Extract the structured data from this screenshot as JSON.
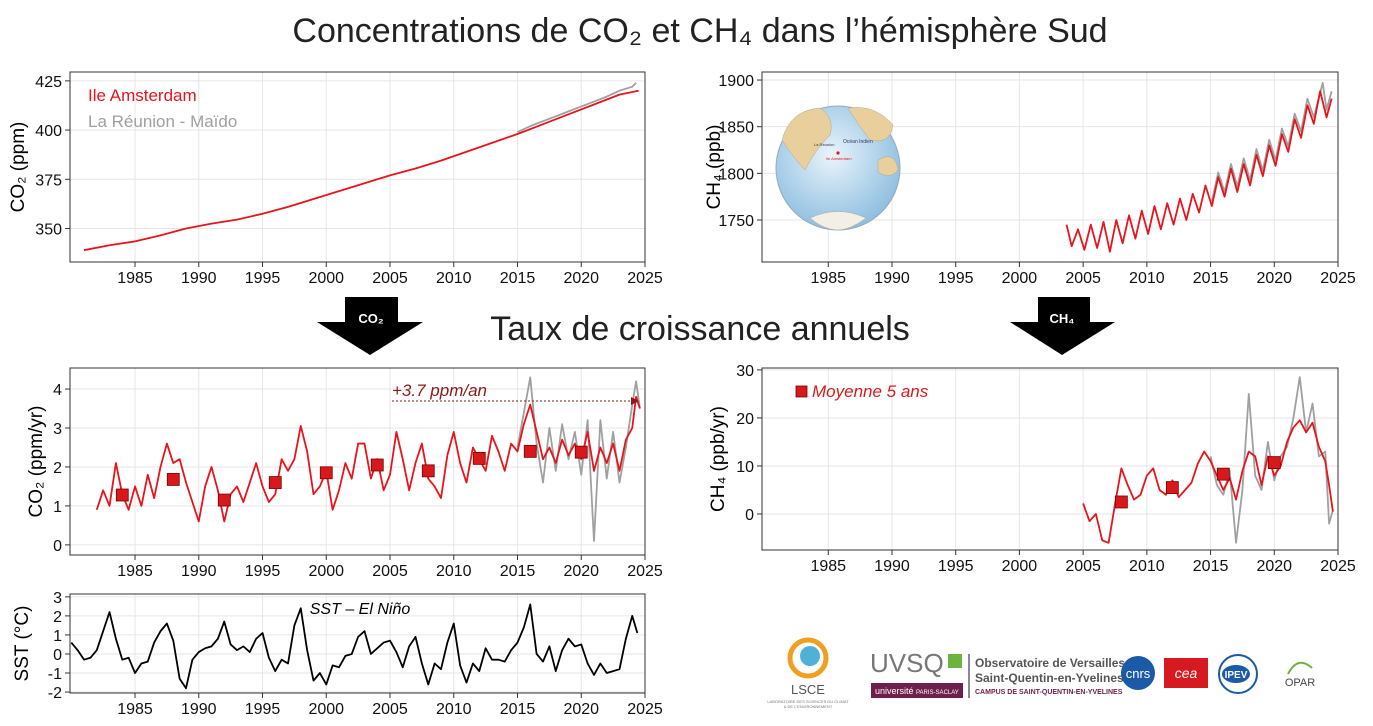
{
  "title": "Concentrations de CO₂ et CH₄ dans l’hémisphère Sud",
  "subtitle": "Taux de croissance annuels",
  "arrows": [
    "CO₂",
    "CH₄"
  ],
  "inset_map": {
    "labels": [
      "Océan Indien",
      "La Réunion",
      "Ile Amsterdam"
    ]
  },
  "logos": {
    "lsce": "LSCE",
    "lsce_full_1": "LABORATOIRE DES SCIENCES DU CLIMAT",
    "lsce_full_2": "& DE L'ENVIRONNEMENT",
    "uvsq": "UVSQ",
    "saclay_1": "université",
    "saclay_2": "PARIS-SACLAY",
    "osu_1": "Observatoire de Versailles",
    "osu_2": "Saint-Quentin-en-Yvelines",
    "osu_3": "CAMPUS DE SAINT-QUENTIN-EN-YVELINES",
    "cnrs": "cnrs",
    "cea": "cea",
    "ipev": "IPEV",
    "opar": "OPAR"
  },
  "chart_data": [
    {
      "type": "line",
      "y_label": "CO₂ (ppm)",
      "xlim": [
        1979.9,
        2025
      ],
      "ylim": [
        333,
        429.5
      ],
      "xticks": [
        1985,
        1990,
        1995,
        2000,
        2005,
        2010,
        2015,
        2020,
        2025
      ],
      "yticks": [
        350,
        375,
        400,
        425
      ],
      "grid": true,
      "legend": "upper-left",
      "series": [
        {
          "name": "Ile Amsterdam",
          "color": "#e8141b",
          "x": [
            1981,
            1983,
            1985,
            1987,
            1989,
            1991,
            1993,
            1995,
            1997,
            1999,
            2001,
            2003,
            2005,
            2007,
            2009,
            2011,
            2013,
            2015,
            2017,
            2019,
            2021,
            2023,
            2024.5
          ],
          "values": [
            339,
            341.5,
            343.5,
            346.5,
            350,
            352.5,
            354.5,
            357.5,
            361,
            365,
            369,
            373,
            377,
            380.5,
            384.5,
            389,
            393.5,
            398,
            403,
            408,
            413,
            418,
            420
          ]
        },
        {
          "name": "La Réunion - Maïdo",
          "color": "#a0a0a0",
          "x": [
            2015,
            2016,
            2017,
            2018,
            2019,
            2020,
            2021,
            2022,
            2023,
            2024,
            2024.3
          ],
          "values": [
            399,
            402,
            404.5,
            407,
            409.5,
            412,
            414.5,
            417,
            420,
            422,
            424
          ]
        }
      ]
    },
    {
      "type": "line",
      "y_label": "CH₄ (ppb)",
      "xlim": [
        1979.8,
        2025
      ],
      "ylim": [
        1705,
        1908.6
      ],
      "xticks": [
        1985,
        1990,
        1995,
        2000,
        2005,
        2010,
        2015,
        2020,
        2025
      ],
      "yticks": [
        1750,
        1800,
        1850,
        1900
      ],
      "grid": true,
      "series": [
        {
          "color": "#a0a0a0",
          "x": [
            2015.1,
            2015.6,
            2016.1,
            2016.6,
            2017.1,
            2017.6,
            2018.1,
            2018.6,
            2019.1,
            2019.6,
            2020.1,
            2020.6,
            2021.1,
            2021.6,
            2022.1,
            2022.6,
            2023.1,
            2023.8,
            2024.1,
            2024.5
          ],
          "values": [
            1770,
            1801,
            1780,
            1810,
            1786,
            1816,
            1793,
            1826,
            1803,
            1836,
            1814,
            1848,
            1829,
            1864,
            1845,
            1880,
            1860,
            1897,
            1868,
            1888
          ]
        },
        {
          "color": "#e8141b",
          "x": [
            2003.7,
            2004.1,
            2004.6,
            2005.1,
            2005.6,
            2006.1,
            2006.6,
            2007.1,
            2007.6,
            2008.1,
            2008.6,
            2009.1,
            2009.6,
            2010.1,
            2010.6,
            2011.1,
            2011.6,
            2012.1,
            2012.6,
            2013.1,
            2013.6,
            2014.1,
            2014.6,
            2015.1,
            2015.6,
            2016.1,
            2016.6,
            2017.1,
            2017.6,
            2018.1,
            2018.6,
            2019.1,
            2019.6,
            2020.1,
            2020.6,
            2021.1,
            2021.6,
            2022.1,
            2022.6,
            2023.1,
            2023.6,
            2024.1,
            2024.5
          ],
          "values": [
            1745,
            1722,
            1740,
            1718,
            1745,
            1720,
            1748,
            1716,
            1750,
            1725,
            1755,
            1730,
            1760,
            1735,
            1765,
            1740,
            1768,
            1745,
            1773,
            1750,
            1778,
            1758,
            1787,
            1765,
            1796,
            1775,
            1805,
            1780,
            1810,
            1787,
            1820,
            1797,
            1830,
            1808,
            1842,
            1823,
            1858,
            1838,
            1873,
            1853,
            1888,
            1860,
            1880
          ]
        }
      ]
    },
    {
      "type": "line",
      "y_label": "CO₂ (ppm/yr)",
      "annotation": "+3.7 ppm/an",
      "xlim": [
        1979.9,
        2025
      ],
      "ylim": [
        -0.26,
        4.54
      ],
      "xticks": [
        1985,
        1990,
        1995,
        2000,
        2005,
        2010,
        2015,
        2020,
        2025
      ],
      "yticks": [
        0,
        1,
        2,
        3,
        4
      ],
      "grid": true,
      "series": [
        {
          "color": "#a0a0a0",
          "x": [
            2015,
            2015.5,
            2016,
            2016.5,
            2017,
            2017.5,
            2018,
            2018.5,
            2019,
            2019.5,
            2020,
            2020.5,
            2021,
            2021.5,
            2022,
            2022.5,
            2023,
            2023.5,
            2024,
            2024.3,
            2024.6
          ],
          "values": [
            2.5,
            3.4,
            4.3,
            2.6,
            1.6,
            3.0,
            1.9,
            3.1,
            2.2,
            2.9,
            1.8,
            3.2,
            0.1,
            3.2,
            1.7,
            2.9,
            1.6,
            2.5,
            3.6,
            4.2,
            3.5
          ]
        },
        {
          "color": "#e8141b",
          "x": [
            1982,
            1982.5,
            1983,
            1983.5,
            1984,
            1984.5,
            1985,
            1985.5,
            1986,
            1986.5,
            1987,
            1987.5,
            1988,
            1988.5,
            1989,
            1989.5,
            1990,
            1990.5,
            1991,
            1991.5,
            1992,
            1992.5,
            1993,
            1993.5,
            1994,
            1994.5,
            1995,
            1995.5,
            1996,
            1996.5,
            1997,
            1997.5,
            1998,
            1998.5,
            1999,
            1999.5,
            2000,
            2000.5,
            2001,
            2001.5,
            2002,
            2002.5,
            2003,
            2003.5,
            2004,
            2004.5,
            2005,
            2005.5,
            2006,
            2006.5,
            2007,
            2007.5,
            2008,
            2008.5,
            2009,
            2009.5,
            2010,
            2010.5,
            2011,
            2011.5,
            2012,
            2012.5,
            2013,
            2013.5,
            2014,
            2014.5,
            2015,
            2015.5,
            2016,
            2016.5,
            2017,
            2017.5,
            2018,
            2018.5,
            2019,
            2019.5,
            2020,
            2020.5,
            2021,
            2021.5,
            2022,
            2022.5,
            2023,
            2023.5,
            2024,
            2024.3,
            2024.6
          ],
          "values": [
            0.9,
            1.4,
            1.0,
            2.1,
            1.3,
            0.9,
            1.5,
            1.0,
            1.8,
            1.2,
            2.0,
            2.6,
            2.1,
            2.2,
            1.6,
            1.1,
            0.6,
            1.5,
            2.0,
            1.4,
            0.6,
            1.3,
            1.5,
            1.1,
            1.6,
            2.1,
            1.5,
            1.1,
            1.3,
            2.2,
            1.9,
            2.2,
            3.05,
            2.4,
            1.3,
            1.5,
            1.9,
            0.9,
            1.4,
            2.1,
            1.7,
            2.6,
            2.6,
            1.7,
            2.2,
            1.4,
            1.8,
            2.9,
            2.2,
            1.4,
            2.1,
            2.6,
            1.7,
            1.5,
            1.2,
            2.3,
            2.9,
            2.1,
            1.6,
            2.5,
            2.2,
            1.9,
            2.8,
            2.4,
            1.9,
            2.6,
            2.4,
            3.1,
            3.6,
            2.9,
            2.2,
            2.5,
            2.1,
            2.7,
            2.3,
            2.6,
            2.2,
            2.9,
            1.9,
            2.5,
            2.1,
            2.6,
            1.9,
            2.7,
            3.0,
            3.8,
            3.5
          ]
        },
        {
          "color": "#d7191c",
          "marker": "square",
          "x": [
            1984,
            1988,
            1992,
            1996,
            2000,
            2004,
            2008,
            2012,
            2016,
            2020
          ],
          "values": [
            1.28,
            1.68,
            1.15,
            1.6,
            1.85,
            2.05,
            1.9,
            2.22,
            2.4,
            2.38
          ]
        }
      ]
    },
    {
      "type": "line",
      "y_label": "CH₄ (ppb/yr)",
      "xlim": [
        1979.8,
        2025
      ],
      "ylim": [
        -7.5,
        30.4
      ],
      "xticks": [
        1985,
        1990,
        1995,
        2000,
        2005,
        2010,
        2015,
        2020,
        2025
      ],
      "yticks": [
        0,
        10,
        20,
        30
      ],
      "grid": true,
      "legend": "upper-left",
      "series": [
        {
          "color": "#a0a0a0",
          "x": [
            2015,
            2015.5,
            2016,
            2016.5,
            2017,
            2017.5,
            2018,
            2018.5,
            2019,
            2019.5,
            2020,
            2020.5,
            2021,
            2021.5,
            2022,
            2022.5,
            2023,
            2023.5,
            2024,
            2024.3,
            2024.6
          ],
          "values": [
            12,
            6,
            4,
            9,
            -6,
            5,
            25,
            8,
            5,
            15,
            7,
            12,
            14,
            20,
            28.5,
            17,
            23,
            12,
            13,
            -2,
            0.8
          ]
        },
        {
          "color": "#e8141b",
          "x": [
            2005,
            2005.5,
            2006,
            2006.5,
            2007,
            2007.5,
            2008,
            2008.5,
            2009,
            2009.5,
            2010,
            2010.5,
            2011,
            2011.5,
            2012,
            2012.5,
            2013,
            2013.5,
            2014,
            2014.5,
            2015,
            2015.5,
            2016,
            2016.5,
            2017,
            2017.5,
            2018,
            2018.5,
            2019,
            2019.5,
            2020,
            2020.5,
            2021,
            2021.5,
            2022,
            2022.5,
            2023,
            2023.5,
            2024,
            2024.3,
            2024.6
          ],
          "values": [
            2.2,
            -1.5,
            0,
            -5.5,
            -6,
            2,
            9.5,
            6,
            3,
            4,
            8,
            9.5,
            5,
            4,
            7,
            3.5,
            5,
            6.5,
            10.5,
            13,
            11,
            8,
            5,
            7.5,
            3,
            9,
            13,
            12,
            6,
            12,
            8,
            10,
            15,
            18,
            19.5,
            17,
            19,
            14,
            11,
            6,
            0.5
          ]
        },
        {
          "name": "Moyenne 5 ans",
          "color": "#d7191c",
          "marker": "square",
          "x": [
            2008,
            2012,
            2016,
            2020
          ],
          "values": [
            2.5,
            5.5,
            8.3,
            10.7
          ]
        }
      ]
    },
    {
      "type": "line",
      "y_label": "SST (°C)",
      "annotation": "SST – El Niño",
      "xlim": [
        1979.9,
        2025
      ],
      "ylim": [
        -2.05,
        3.15
      ],
      "xticks": [
        1985,
        1990,
        1995,
        2000,
        2005,
        2010,
        2015,
        2020,
        2025
      ],
      "yticks": [
        -2,
        -1,
        0,
        1,
        2,
        3
      ],
      "grid": true,
      "series": [
        {
          "color": "#000000",
          "x": [
            1980,
            1980.5,
            1981,
            1981.5,
            1982,
            1982.5,
            1983,
            1983.5,
            1984,
            1984.5,
            1985,
            1985.5,
            1986,
            1986.5,
            1987,
            1987.5,
            1988,
            1988.5,
            1989,
            1989.5,
            1990,
            1990.5,
            1991,
            1991.5,
            1992,
            1992.5,
            1993,
            1993.5,
            1994,
            1994.5,
            1995,
            1995.5,
            1996,
            1996.5,
            1997,
            1997.5,
            1998,
            1998.5,
            1999,
            1999.5,
            2000,
            2000.5,
            2001,
            2001.5,
            2002,
            2002.5,
            2003,
            2003.5,
            2004,
            2004.5,
            2005,
            2005.5,
            2006,
            2006.5,
            2007,
            2007.5,
            2008,
            2008.5,
            2009,
            2009.5,
            2010,
            2010.5,
            2011,
            2011.5,
            2012,
            2012.5,
            2013,
            2013.5,
            2014,
            2014.5,
            2015,
            2015.5,
            2016,
            2016.5,
            2017,
            2017.5,
            2018,
            2018.5,
            2019,
            2019.5,
            2020,
            2020.5,
            2021,
            2021.5,
            2022,
            2022.5,
            2023,
            2023.5,
            2024,
            2024.4
          ],
          "values": [
            0.6,
            0.2,
            -0.3,
            -0.2,
            0.2,
            1.2,
            2.2,
            0.8,
            -0.3,
            -0.2,
            -1.0,
            -0.5,
            -0.4,
            0.6,
            1.2,
            1.6,
            0.7,
            -1.3,
            -1.8,
            -0.3,
            0.1,
            0.3,
            0.4,
            0.8,
            1.7,
            0.5,
            0.2,
            0.4,
            0.1,
            0.8,
            1.1,
            -0.2,
            -0.9,
            -0.3,
            -0.5,
            1.5,
            2.4,
            0.2,
            -1.4,
            -1.0,
            -1.6,
            -0.6,
            -0.7,
            -0.1,
            0.0,
            0.9,
            1.2,
            0.0,
            0.3,
            0.6,
            0.7,
            0.1,
            -0.7,
            0.4,
            0.9,
            -0.5,
            -1.6,
            -0.5,
            -0.8,
            0.6,
            1.6,
            -0.6,
            -1.5,
            -0.5,
            -0.9,
            0.3,
            -0.3,
            -0.3,
            -0.4,
            0.2,
            0.6,
            1.4,
            2.6,
            0.0,
            -0.4,
            0.4,
            -0.9,
            0.2,
            0.8,
            0.4,
            0.5,
            -0.5,
            -1.1,
            -0.5,
            -1.0,
            -0.9,
            -0.8,
            0.8,
            2.0,
            1.1
          ]
        }
      ]
    }
  ]
}
